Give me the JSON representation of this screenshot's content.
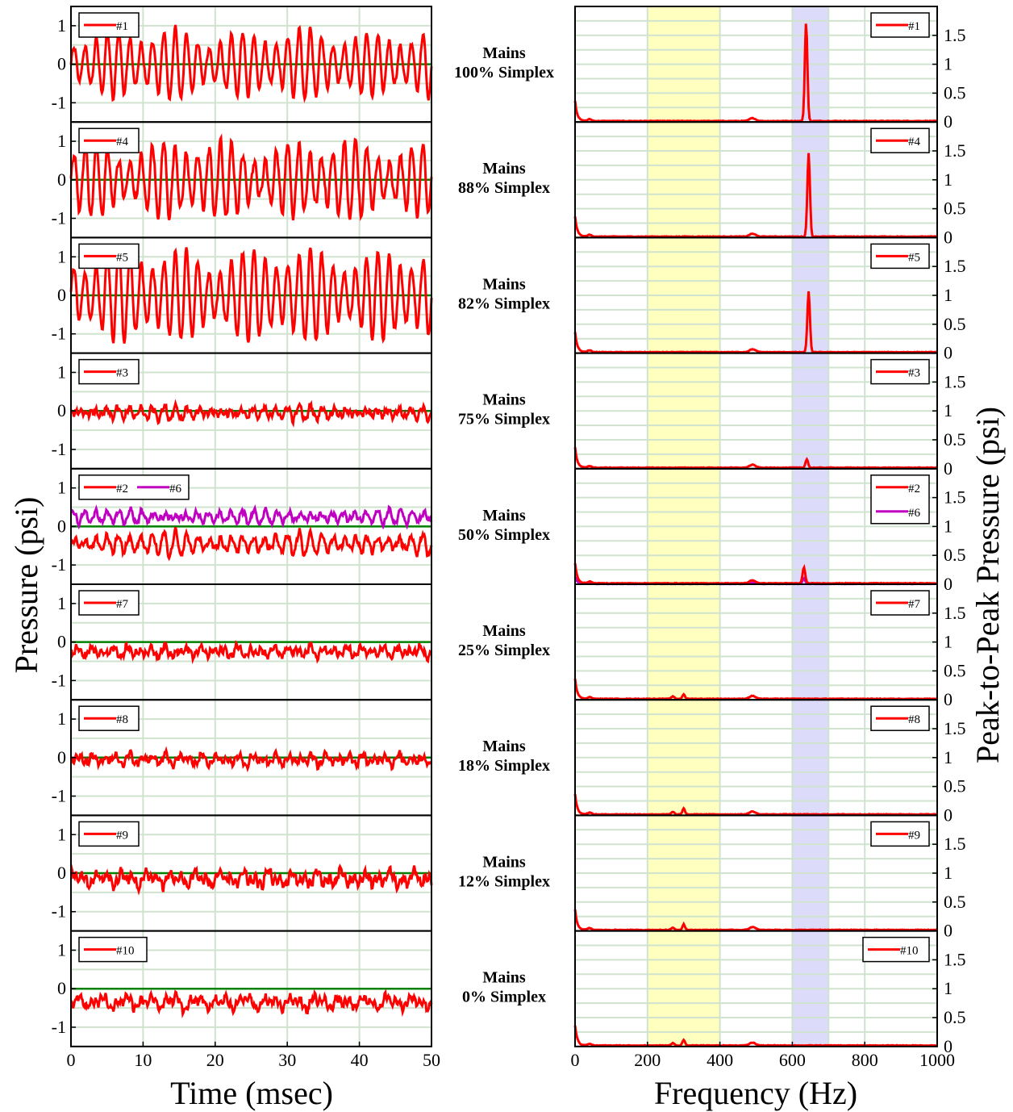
{
  "chart_data": {
    "type": "line",
    "layout": "two-column small multiples",
    "left": {
      "xlabel": "Time (msec)",
      "ylabel": "Pressure (psi)",
      "xlim": [
        0,
        50
      ],
      "ylim": [
        -1.5,
        1.5
      ],
      "xticks": [
        "0",
        "10",
        "20",
        "30",
        "40",
        "50"
      ],
      "yticks": [
        "1",
        "0",
        "-1"
      ],
      "zero_line_color": "#008000",
      "grid": true
    },
    "right": {
      "xlabel": "Frequency (Hz)",
      "ylabel": "Peak-to-Peak Pressure (psi)",
      "xlim": [
        0,
        1000
      ],
      "ylim": [
        0,
        2.0
      ],
      "xticks": [
        "0",
        "200",
        "400",
        "600",
        "800",
        "1000"
      ],
      "yticks": [
        "1.5",
        "1",
        "0.5",
        "0"
      ],
      "bands": [
        {
          "from": 200,
          "to": 400,
          "color": "#ffffc0"
        },
        {
          "from": 600,
          "to": 700,
          "color": "#dcdcfa"
        }
      ],
      "grid": true
    },
    "colors": {
      "red": "#ff0000",
      "purple": "#c000c0",
      "zero": "#008000",
      "grid": "#cfe3cf"
    },
    "panels": [
      {
        "condition": [
          "Mains",
          "100% Simplex"
        ],
        "legend": [
          "#1"
        ],
        "amp": 0.85,
        "offset": 0.0,
        "cycles": 32,
        "noise": 0.1,
        "peak": {
          "f": 638,
          "a": 1.7
        },
        "offset2": null
      },
      {
        "condition": [
          "Mains",
          "88% Simplex"
        ],
        "legend": [
          "#4"
        ],
        "amp": 0.95,
        "offset": 0.0,
        "cycles": 32,
        "noise": 0.15,
        "peak": {
          "f": 645,
          "a": 1.45
        },
        "offset2": null
      },
      {
        "condition": [
          "Mains",
          "82% Simplex"
        ],
        "legend": [
          "#5"
        ],
        "amp": 1.15,
        "offset": 0.0,
        "cycles": 32,
        "noise": 0.12,
        "peak": {
          "f": 645,
          "a": 1.05
        },
        "offset2": null
      },
      {
        "condition": [
          "Mains",
          "75% Simplex"
        ],
        "legend": [
          "#3"
        ],
        "amp": 0.12,
        "offset": -0.05,
        "cycles": 32,
        "noise": 0.12,
        "peak": {
          "f": 640,
          "a": 0.15
        },
        "offset2": null
      },
      {
        "condition": [
          "Mains",
          "50% Simplex"
        ],
        "legend": [
          "#2",
          "#6"
        ],
        "amp": 0.25,
        "offset": -0.45,
        "cycles": 32,
        "noise": 0.12,
        "peak": {
          "f": 632,
          "a": 0.28
        },
        "offset2": 0.25
      },
      {
        "condition": [
          "Mains",
          "25% Simplex"
        ],
        "legend": [
          "#7"
        ],
        "amp": 0.08,
        "offset": -0.25,
        "cycles": 20,
        "noise": 0.13,
        "peak": {
          "f": 300,
          "a": 0.08
        },
        "offset2": null
      },
      {
        "condition": [
          "Mains",
          "18% Simplex"
        ],
        "legend": [
          "#8"
        ],
        "amp": 0.08,
        "offset": -0.05,
        "cycles": 20,
        "noise": 0.13,
        "peak": {
          "f": 300,
          "a": 0.1
        },
        "offset2": null
      },
      {
        "condition": [
          "Mains",
          "12% Simplex"
        ],
        "legend": [
          "#9"
        ],
        "amp": 0.12,
        "offset": -0.15,
        "cycles": 15,
        "noise": 0.18,
        "peak": {
          "f": 300,
          "a": 0.1
        },
        "offset2": null
      },
      {
        "condition": [
          "Mains",
          "0% Simplex"
        ],
        "legend": [
          "#10"
        ],
        "amp": 0.12,
        "offset": -0.35,
        "cycles": 15,
        "noise": 0.15,
        "peak": {
          "f": 300,
          "a": 0.1
        },
        "offset2": null
      }
    ]
  }
}
